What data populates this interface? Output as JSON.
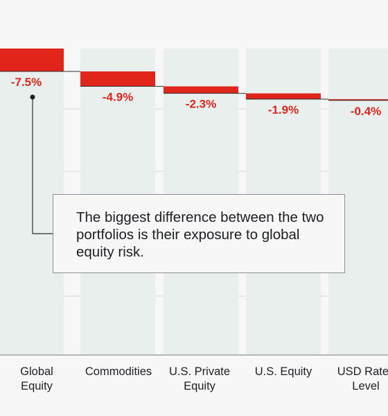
{
  "chart_data": {
    "type": "bar",
    "categories": [
      "Global\nEquity",
      "Commodities",
      "U.S. Private\nEquity",
      "U.S. Equity",
      "USD Rates\nLevel"
    ],
    "values": [
      -7.5,
      -4.9,
      -2.3,
      -1.9,
      -0.4
    ],
    "value_labels": [
      "-7.5%",
      "-4.9%",
      "-2.3%",
      "-1.9%",
      "-0.4%"
    ],
    "style": "waterfall",
    "grid": true,
    "annotation": "The biggest difference between the two portfolios is their exposure to global equity risk."
  },
  "colors": {
    "bar": "#e0261b",
    "label": "#e0261b",
    "column_band": "#e8efec",
    "grid": "#d6d9dc",
    "axis": "#9aa0a6",
    "text": "#1b1f24"
  }
}
